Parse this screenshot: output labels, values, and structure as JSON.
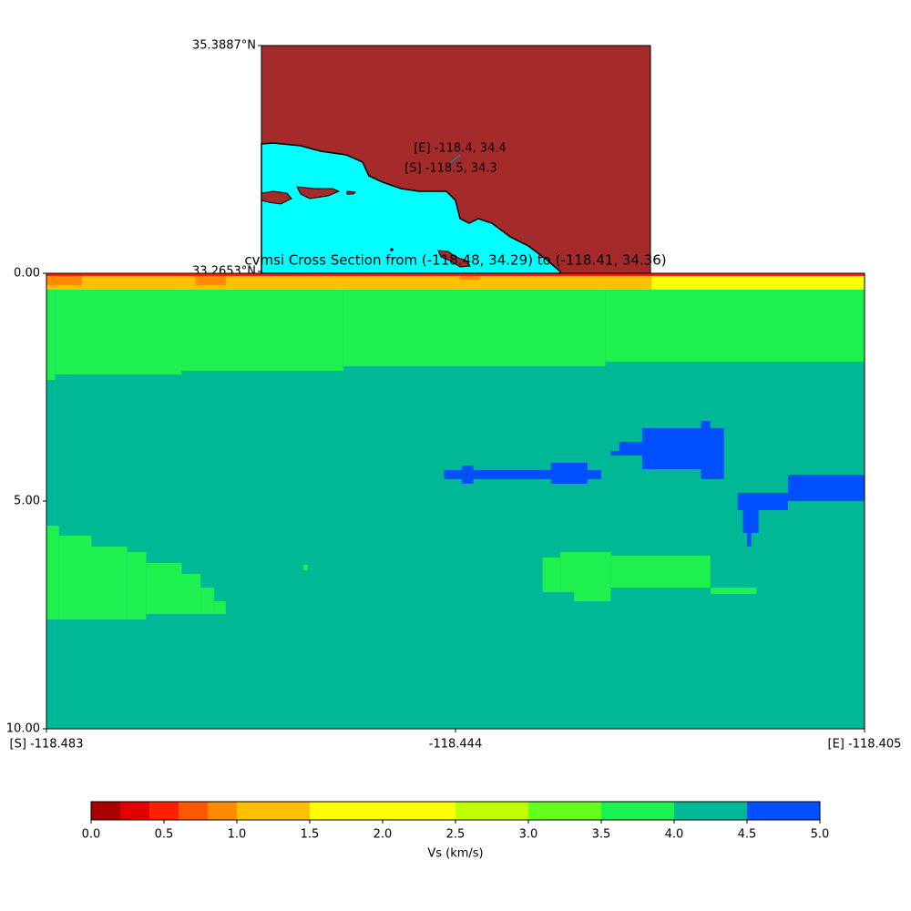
{
  "chart_data": [
    {
      "type": "map",
      "ylim": [
        33.2653,
        35.3887
      ],
      "yticks": [
        {
          "value": 35.3887,
          "label": "35.3887°N"
        },
        {
          "value": 33.2653,
          "label": "33.2653°N"
        }
      ],
      "annotations": [
        "[E] -118.4, 34.4",
        "[S] -118.5, 34.3"
      ]
    },
    {
      "type": "section",
      "title": "cvmsi Cross Section from (-118.48, 34.29) to (-118.41, 34.36)",
      "xlim": [
        -118.483,
        -118.405
      ],
      "xticks": [
        {
          "value": -118.483,
          "label": "[S] -118.483"
        },
        -118.444,
        {
          "value": -118.405,
          "label": "[E] -118.405"
        }
      ],
      "ylim": [
        0,
        10
      ],
      "yticks": [
        {
          "value": 0,
          "label": "0.00"
        },
        {
          "value": 5,
          "label": "5.00"
        },
        {
          "value": 10,
          "label": "10.00"
        }
      ],
      "cells": [
        {
          "lon": [
            -118.483,
            -118.405
          ],
          "depth": [
            0,
            10
          ],
          "vs": 4.25
        },
        {
          "lon": [
            -118.483,
            -118.4822
          ],
          "depth": [
            0.36,
            2.34
          ],
          "vs": 3.75
        },
        {
          "lon": [
            -118.4822,
            -118.4701
          ],
          "depth": [
            0.36,
            2.22
          ],
          "vs": 3.75
        },
        {
          "lon": [
            -118.4701,
            -118.4547
          ],
          "depth": [
            0.36,
            2.14
          ],
          "vs": 3.75
        },
        {
          "lon": [
            -118.4547,
            -118.4297
          ],
          "depth": [
            0.36,
            2.04
          ],
          "vs": 3.75
        },
        {
          "lon": [
            -118.4297,
            -118.405
          ],
          "depth": [
            0.36,
            1.94
          ],
          "vs": 3.75
        },
        {
          "lon": [
            -118.483,
            -118.4253
          ],
          "depth": [
            0.06,
            0.36
          ],
          "vs": 1.25
        },
        {
          "lon": [
            -118.4253,
            -118.405
          ],
          "depth": [
            0.06,
            0.36
          ],
          "vs": 2.0
        },
        {
          "lon": [
            -118.483,
            -118.405
          ],
          "depth": [
            0,
            0.06
          ],
          "vs": 0.5
        },
        {
          "lon": [
            -118.483,
            -118.4796
          ],
          "depth": [
            0.06,
            0.26
          ],
          "vs": 0.9
        },
        {
          "lon": [
            -118.4688,
            -118.4659
          ],
          "depth": [
            0.06,
            0.26
          ],
          "vs": 0.9
        },
        {
          "lon": [
            -118.4436,
            -118.4417
          ],
          "depth": [
            0.06,
            0.14
          ],
          "vs": 0.9
        },
        {
          "lon": [
            -118.4451,
            -118.4301
          ],
          "depth": [
            4.32,
            4.52
          ],
          "vs": 4.75
        },
        {
          "lon": [
            -118.4434,
            -118.4423
          ],
          "depth": [
            4.22,
            4.62
          ],
          "vs": 4.75
        },
        {
          "lon": [
            -118.4349,
            -118.4314
          ],
          "depth": [
            4.16,
            4.62
          ],
          "vs": 4.75
        },
        {
          "lon": [
            -118.4262,
            -118.4184
          ],
          "depth": [
            3.4,
            4.3
          ],
          "vs": 4.75
        },
        {
          "lon": [
            -118.4284,
            -118.4262
          ],
          "depth": [
            3.7,
            4.0
          ],
          "vs": 4.75
        },
        {
          "lon": [
            -118.4292,
            -118.4262
          ],
          "depth": [
            3.9,
            4.0
          ],
          "vs": 4.75
        },
        {
          "lon": [
            -118.4206,
            -118.4197
          ],
          "depth": [
            3.24,
            3.4
          ],
          "vs": 4.75
        },
        {
          "lon": [
            -118.4206,
            -118.4184
          ],
          "depth": [
            4.3,
            4.52
          ],
          "vs": 4.75
        },
        {
          "lon": [
            -118.4123,
            -118.405
          ],
          "depth": [
            4.42,
            5.0
          ],
          "vs": 4.75
        },
        {
          "lon": [
            -118.4171,
            -118.4123
          ],
          "depth": [
            4.82,
            5.2
          ],
          "vs": 4.75
        },
        {
          "lon": [
            -118.4166,
            -118.4151
          ],
          "depth": [
            5.2,
            5.7
          ],
          "vs": 4.75
        },
        {
          "lon": [
            -118.4162,
            -118.4158
          ],
          "depth": [
            5.7,
            6.0
          ],
          "vs": 4.75
        },
        {
          "lon": [
            -118.483,
            -118.4818
          ],
          "depth": [
            5.54,
            7.6
          ],
          "vs": 3.75
        },
        {
          "lon": [
            -118.4818,
            -118.4787
          ],
          "depth": [
            5.76,
            7.6
          ],
          "vs": 3.75
        },
        {
          "lon": [
            -118.4787,
            -118.4753
          ],
          "depth": [
            6.0,
            7.6
          ],
          "vs": 3.75
        },
        {
          "lon": [
            -118.4753,
            -118.4735
          ],
          "depth": [
            6.12,
            7.6
          ],
          "vs": 3.75
        },
        {
          "lon": [
            -118.4735,
            -118.4701
          ],
          "depth": [
            6.36,
            7.48
          ],
          "vs": 3.75
        },
        {
          "lon": [
            -118.4701,
            -118.4683
          ],
          "depth": [
            6.6,
            7.48
          ],
          "vs": 3.75
        },
        {
          "lon": [
            -118.4683,
            -118.467
          ],
          "depth": [
            6.9,
            7.48
          ],
          "vs": 3.75
        },
        {
          "lon": [
            -118.467,
            -118.4659
          ],
          "depth": [
            7.2,
            7.48
          ],
          "vs": 3.75
        },
        {
          "lon": [
            -118.4585,
            -118.4581
          ],
          "depth": [
            6.4,
            6.52
          ],
          "vs": 3.75
        },
        {
          "lon": [
            -118.4357,
            -118.434
          ],
          "depth": [
            6.24,
            7.0
          ],
          "vs": 3.75
        },
        {
          "lon": [
            -118.434,
            -118.4292
          ],
          "depth": [
            6.12,
            7.0
          ],
          "vs": 3.75
        },
        {
          "lon": [
            -118.4327,
            -118.4292
          ],
          "depth": [
            7.0,
            7.2
          ],
          "vs": 3.75
        },
        {
          "lon": [
            -118.4292,
            -118.4197
          ],
          "depth": [
            6.2,
            6.9
          ],
          "vs": 3.75
        },
        {
          "lon": [
            -118.4197,
            -118.4153
          ],
          "depth": [
            6.9,
            7.04
          ],
          "vs": 3.75
        }
      ],
      "colorbar": {
        "label": "Vs (km/s)",
        "lim": [
          0,
          5
        ],
        "bounds": [
          0,
          0.2,
          0.4,
          0.6,
          0.8,
          1.0,
          1.5,
          2.5,
          3.0,
          3.5,
          4.0,
          4.5,
          5.0
        ],
        "colors": [
          "#a80000",
          "#e00000",
          "#ff2000",
          "#ff5800",
          "#ff8c00",
          "#ffc000",
          "#ffff00",
          "#c0ff00",
          "#64ff1e",
          "#1ef050",
          "#00b896",
          "#0050ff"
        ],
        "ticks": [
          {
            "value": 0,
            "label": "0.0"
          },
          0.5,
          {
            "value": 1,
            "label": "1.0"
          },
          1.5,
          {
            "value": 2,
            "label": "2.0"
          },
          2.5,
          {
            "value": 3,
            "label": "3.0"
          },
          3.5,
          {
            "value": 4,
            "label": "4.0"
          },
          4.5,
          {
            "value": 5,
            "label": "5.0"
          }
        ]
      }
    }
  ]
}
